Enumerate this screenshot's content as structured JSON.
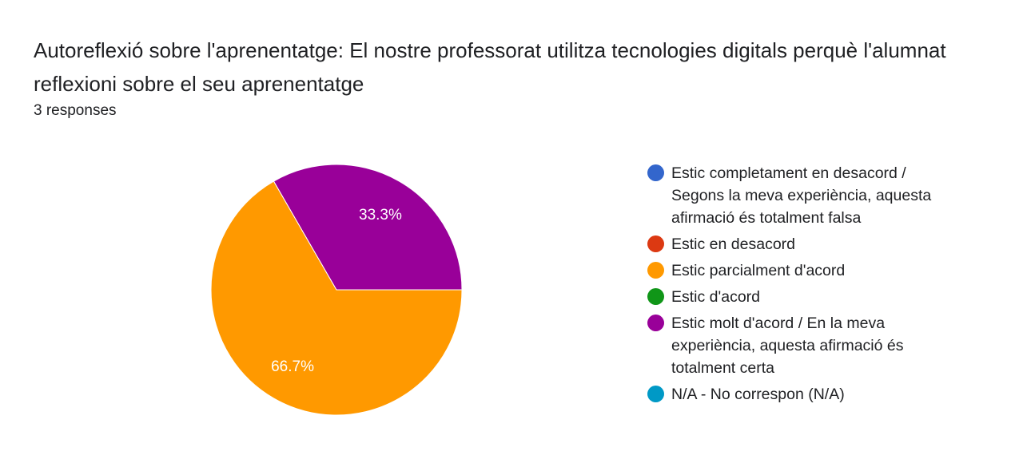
{
  "chart_data": {
    "type": "pie",
    "title": "Autoreflexió sobre l'aprenentatge: El nostre professorat utilitza tecnologies digitals perquè l'alumnat reflexioni sobre el seu aprenentatge",
    "subtitle": "3 responses",
    "legend_position": "right",
    "slices": [
      {
        "label": "Estic completament en desacord / Segons la meva experiència, aquesta afirmació és totalment falsa",
        "value": 0,
        "percent_label": "",
        "color": "#3366cc"
      },
      {
        "label": "Estic en desacord",
        "value": 0,
        "percent_label": "",
        "color": "#dc3912"
      },
      {
        "label": "Estic parcialment d'acord",
        "value": 2,
        "percent_label": "66.7%",
        "color": "#ff9900"
      },
      {
        "label": "Estic d'acord",
        "value": 0,
        "percent_label": "",
        "color": "#109618"
      },
      {
        "label": "Estic molt d'acord / En la meva experiència, aquesta afirmació és totalment certa",
        "value": 1,
        "percent_label": "33.3%",
        "color": "#990099"
      },
      {
        "label": "N/A - No correspon (N/A)",
        "value": 0,
        "percent_label": "",
        "color": "#0099c6"
      }
    ]
  }
}
